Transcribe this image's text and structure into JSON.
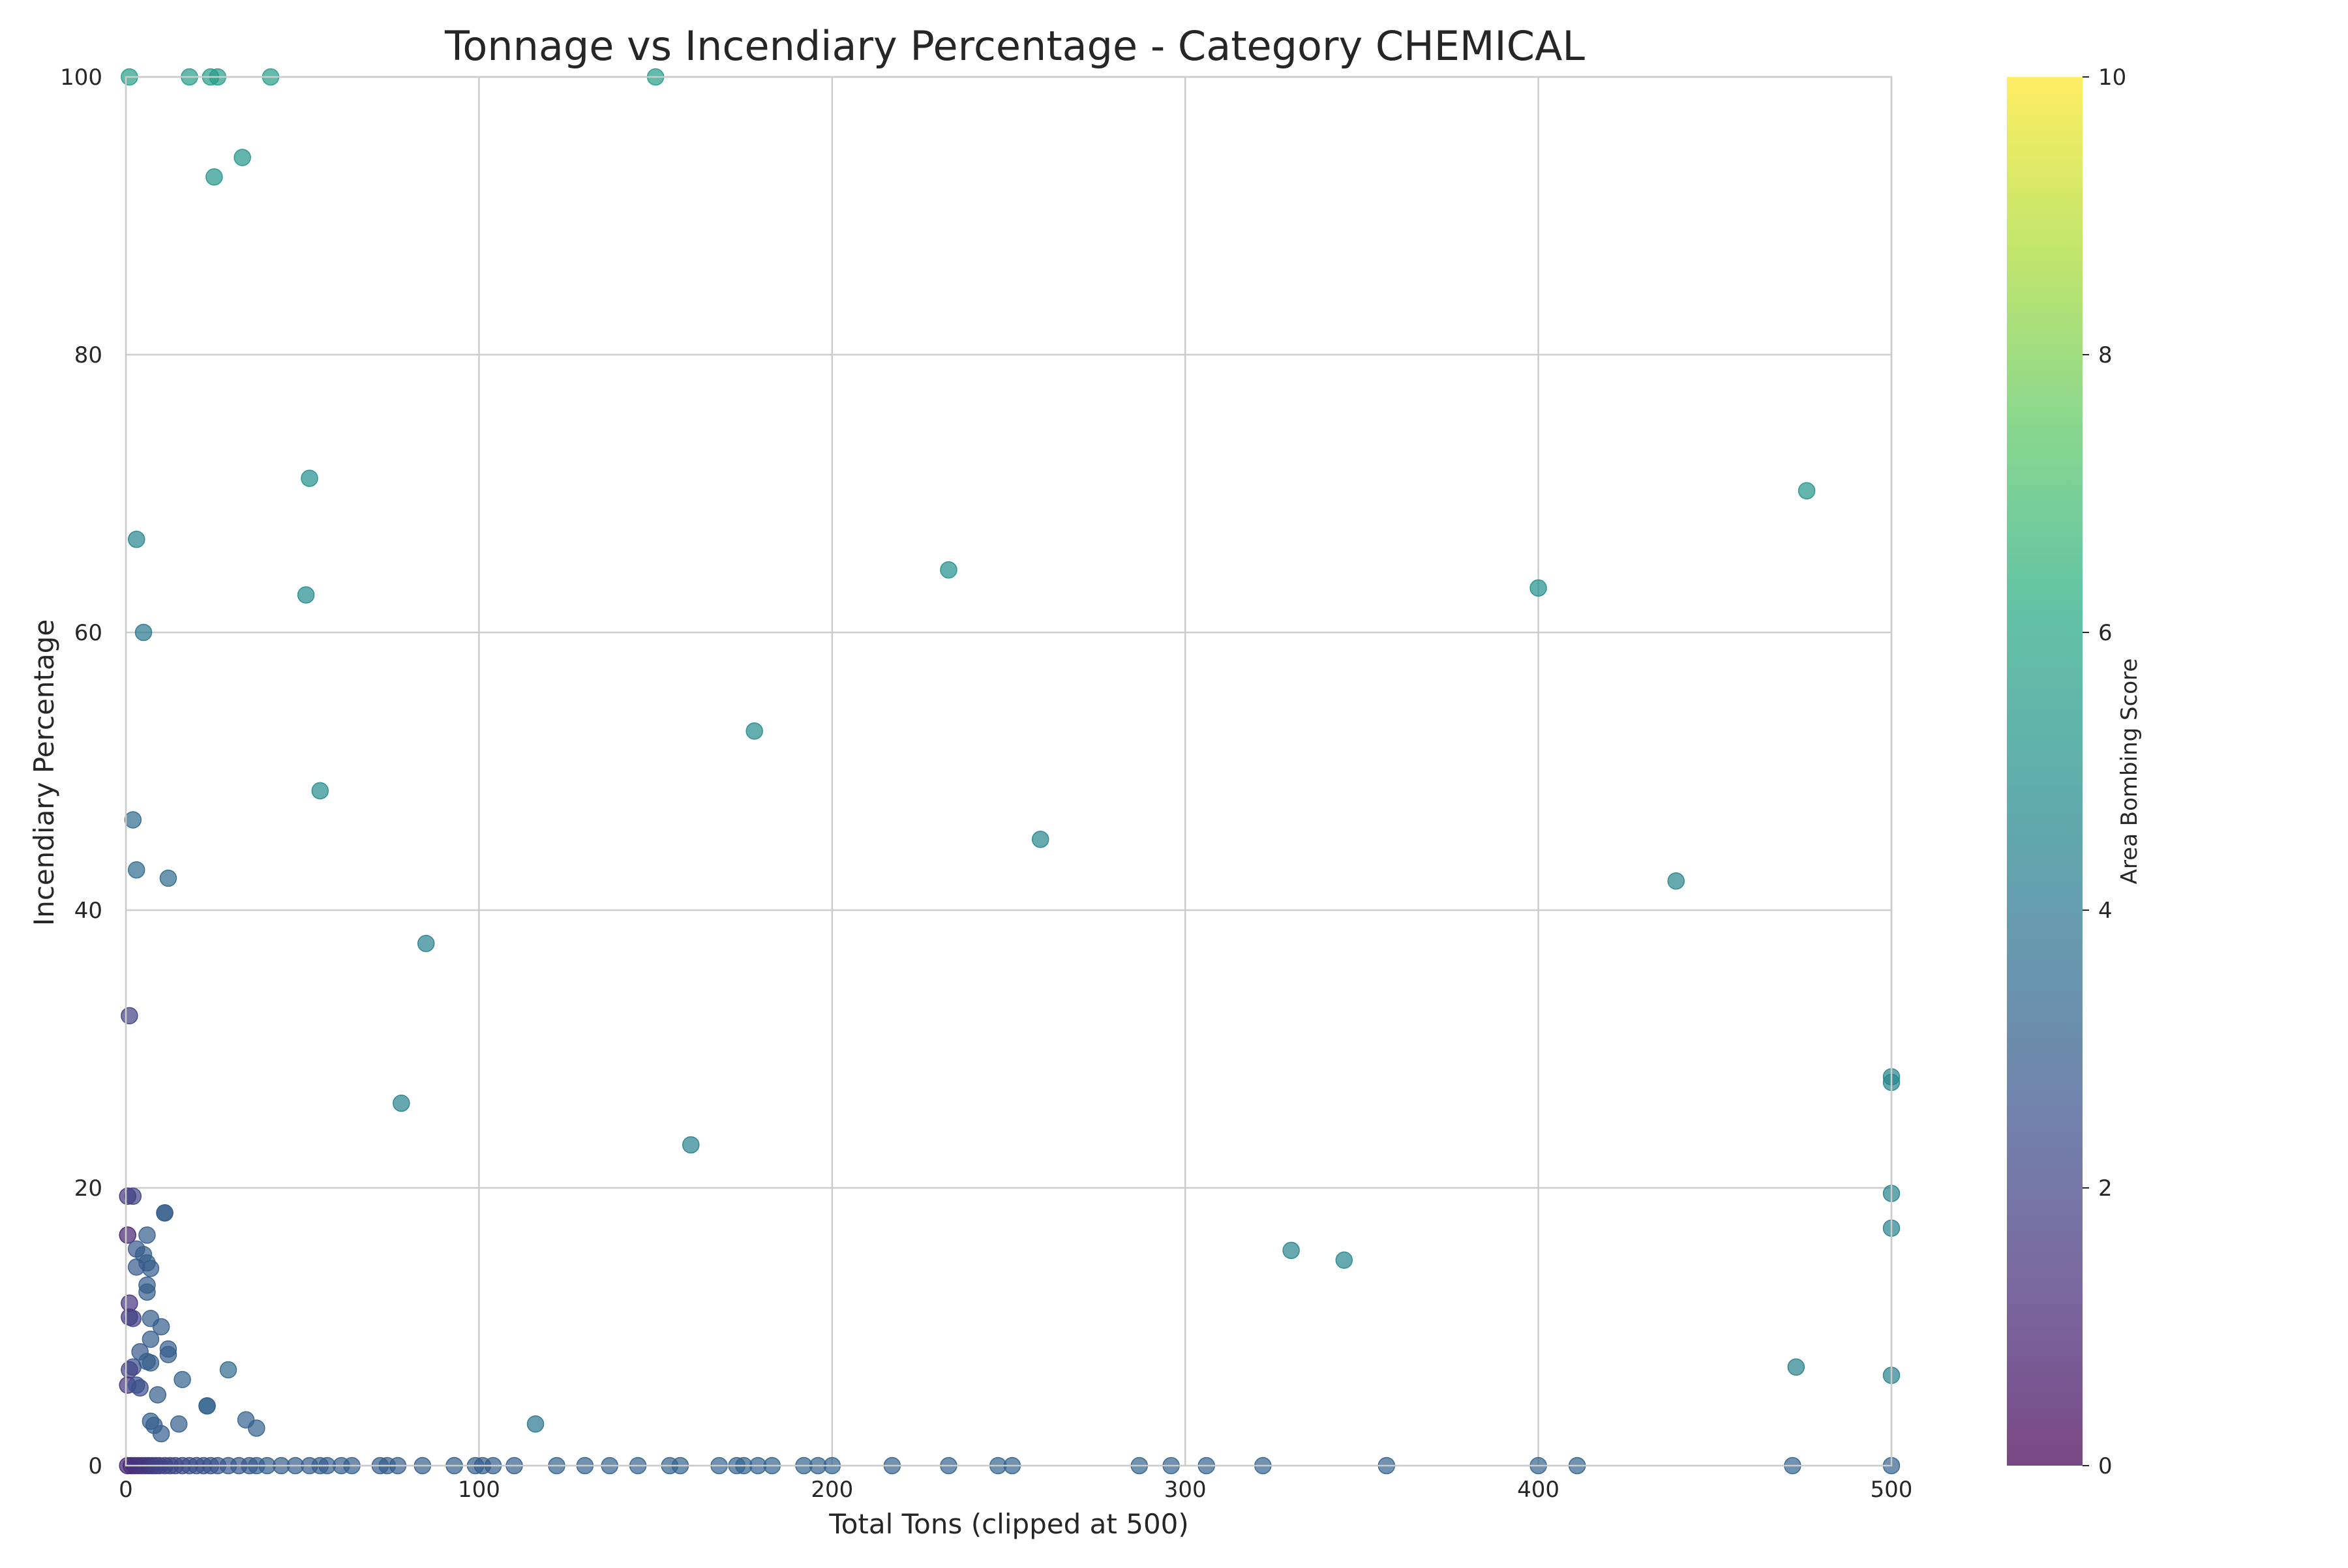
{
  "chart_data": {
    "type": "scatter",
    "title": "Tonnage vs Incendiary Percentage - Category CHEMICAL",
    "xlabel": "Total Tons (clipped at 500)",
    "ylabel": "Incendiary Percentage",
    "xlim": [
      0,
      500
    ],
    "ylim": [
      0,
      100
    ],
    "x_ticks": [
      0,
      100,
      200,
      300,
      400,
      500
    ],
    "y_ticks": [
      0,
      20,
      40,
      60,
      80,
      100
    ],
    "grid": true,
    "colorbar": {
      "label": "Area Bombing Score",
      "colormap": "viridis",
      "range": [
        0,
        10
      ],
      "ticks": [
        0,
        2,
        4,
        6,
        8,
        10
      ]
    },
    "marker_alpha": 0.7,
    "points": [
      {
        "x": 1,
        "y": 100,
        "c": 5.5
      },
      {
        "x": 18,
        "y": 100,
        "c": 5.5
      },
      {
        "x": 24,
        "y": 100,
        "c": 5.5
      },
      {
        "x": 26,
        "y": 100,
        "c": 5.5
      },
      {
        "x": 41,
        "y": 100,
        "c": 5.5
      },
      {
        "x": 150,
        "y": 100,
        "c": 5.5
      },
      {
        "x": 33,
        "y": 94.2,
        "c": 5.2
      },
      {
        "x": 25,
        "y": 92.8,
        "c": 5.2
      },
      {
        "x": 52,
        "y": 71.1,
        "c": 5.0
      },
      {
        "x": 476,
        "y": 70.2,
        "c": 5.2
      },
      {
        "x": 3,
        "y": 66.7,
        "c": 4.5
      },
      {
        "x": 233,
        "y": 64.5,
        "c": 5.0
      },
      {
        "x": 400,
        "y": 63.2,
        "c": 5.0
      },
      {
        "x": 51,
        "y": 62.7,
        "c": 4.8
      },
      {
        "x": 5,
        "y": 60.0,
        "c": 4.0
      },
      {
        "x": 178,
        "y": 52.9,
        "c": 4.8
      },
      {
        "x": 55,
        "y": 48.6,
        "c": 4.8
      },
      {
        "x": 2,
        "y": 46.5,
        "c": 3.5
      },
      {
        "x": 259,
        "y": 45.1,
        "c": 4.6
      },
      {
        "x": 3,
        "y": 42.9,
        "c": 3.5
      },
      {
        "x": 12,
        "y": 42.3,
        "c": 3.5
      },
      {
        "x": 439,
        "y": 42.1,
        "c": 4.6
      },
      {
        "x": 85,
        "y": 37.6,
        "c": 4.4
      },
      {
        "x": 1,
        "y": 32.4,
        "c": 2.0
      },
      {
        "x": 500,
        "y": 28.0,
        "c": 4.6
      },
      {
        "x": 500,
        "y": 27.6,
        "c": 4.6
      },
      {
        "x": 78,
        "y": 26.1,
        "c": 4.4
      },
      {
        "x": 160,
        "y": 23.1,
        "c": 4.4
      },
      {
        "x": 0.5,
        "y": 19.4,
        "c": 1.5
      },
      {
        "x": 2,
        "y": 19.4,
        "c": 2.0
      },
      {
        "x": 500,
        "y": 19.6,
        "c": 4.4
      },
      {
        "x": 11,
        "y": 18.2,
        "c": 3.0
      },
      {
        "x": 11,
        "y": 18.2,
        "c": 3.0
      },
      {
        "x": 500,
        "y": 17.1,
        "c": 4.4
      },
      {
        "x": 0.5,
        "y": 16.6,
        "c": 1.0
      },
      {
        "x": 6,
        "y": 16.6,
        "c": 3.0
      },
      {
        "x": 3,
        "y": 15.6,
        "c": 2.8
      },
      {
        "x": 5,
        "y": 15.2,
        "c": 3.0
      },
      {
        "x": 330,
        "y": 15.5,
        "c": 4.6
      },
      {
        "x": 345,
        "y": 14.8,
        "c": 4.6
      },
      {
        "x": 6,
        "y": 14.6,
        "c": 3.0
      },
      {
        "x": 7,
        "y": 14.2,
        "c": 3.0
      },
      {
        "x": 3,
        "y": 14.3,
        "c": 2.8
      },
      {
        "x": 6,
        "y": 13.0,
        "c": 3.0
      },
      {
        "x": 6,
        "y": 12.5,
        "c": 3.0
      },
      {
        "x": 1,
        "y": 11.7,
        "c": 1.5
      },
      {
        "x": 1,
        "y": 10.7,
        "c": 1.5
      },
      {
        "x": 2,
        "y": 10.6,
        "c": 2.0
      },
      {
        "x": 7,
        "y": 10.6,
        "c": 3.0
      },
      {
        "x": 10,
        "y": 10.0,
        "c": 3.0
      },
      {
        "x": 7,
        "y": 9.1,
        "c": 3.0
      },
      {
        "x": 12,
        "y": 8.4,
        "c": 3.0
      },
      {
        "x": 4,
        "y": 8.2,
        "c": 2.8
      },
      {
        "x": 12,
        "y": 8.0,
        "c": 3.0
      },
      {
        "x": 6,
        "y": 7.5,
        "c": 3.0
      },
      {
        "x": 7,
        "y": 7.4,
        "c": 3.0
      },
      {
        "x": 2,
        "y": 7.1,
        "c": 2.5
      },
      {
        "x": 1,
        "y": 6.9,
        "c": 2.0
      },
      {
        "x": 29,
        "y": 6.9,
        "c": 3.5
      },
      {
        "x": 473,
        "y": 7.1,
        "c": 4.4
      },
      {
        "x": 500,
        "y": 6.5,
        "c": 4.4
      },
      {
        "x": 16,
        "y": 6.2,
        "c": 3.2
      },
      {
        "x": 0.5,
        "y": 5.8,
        "c": 1.5
      },
      {
        "x": 3,
        "y": 5.8,
        "c": 2.5
      },
      {
        "x": 4,
        "y": 5.6,
        "c": 2.5
      },
      {
        "x": 9,
        "y": 5.1,
        "c": 3.0
      },
      {
        "x": 23,
        "y": 4.3,
        "c": 3.2
      },
      {
        "x": 23,
        "y": 4.3,
        "c": 3.2
      },
      {
        "x": 34,
        "y": 3.3,
        "c": 3.2
      },
      {
        "x": 7,
        "y": 3.2,
        "c": 3.0
      },
      {
        "x": 15,
        "y": 3.0,
        "c": 3.0
      },
      {
        "x": 8,
        "y": 2.9,
        "c": 3.0
      },
      {
        "x": 116,
        "y": 3.0,
        "c": 4.0
      },
      {
        "x": 37,
        "y": 2.7,
        "c": 3.2
      },
      {
        "x": 10,
        "y": 2.3,
        "c": 3.0
      },
      {
        "x": 0.5,
        "y": 0,
        "c": 1.0
      },
      {
        "x": 1.5,
        "y": 0,
        "c": 1.2
      },
      {
        "x": 2.5,
        "y": 0,
        "c": 1.3
      },
      {
        "x": 3.5,
        "y": 0,
        "c": 1.5
      },
      {
        "x": 4.5,
        "y": 0,
        "c": 1.5
      },
      {
        "x": 5.5,
        "y": 0,
        "c": 1.6
      },
      {
        "x": 6.5,
        "y": 0,
        "c": 1.6
      },
      {
        "x": 7.5,
        "y": 0,
        "c": 1.8
      },
      {
        "x": 8.5,
        "y": 0,
        "c": 1.8
      },
      {
        "x": 9.5,
        "y": 0,
        "c": 2.0
      },
      {
        "x": 11,
        "y": 0,
        "c": 2.0
      },
      {
        "x": 12.5,
        "y": 0,
        "c": 2.0
      },
      {
        "x": 14,
        "y": 0,
        "c": 2.2
      },
      {
        "x": 16,
        "y": 0,
        "c": 2.2
      },
      {
        "x": 18,
        "y": 0,
        "c": 2.4
      },
      {
        "x": 20,
        "y": 0,
        "c": 2.4
      },
      {
        "x": 22,
        "y": 0,
        "c": 2.5
      },
      {
        "x": 24,
        "y": 0,
        "c": 2.6
      },
      {
        "x": 26,
        "y": 0,
        "c": 2.6
      },
      {
        "x": 29,
        "y": 0,
        "c": 2.8
      },
      {
        "x": 32,
        "y": 0,
        "c": 2.8
      },
      {
        "x": 35,
        "y": 0,
        "c": 2.8
      },
      {
        "x": 37,
        "y": 0,
        "c": 3.0
      },
      {
        "x": 40,
        "y": 0,
        "c": 3.0
      },
      {
        "x": 44,
        "y": 0,
        "c": 3.0
      },
      {
        "x": 48,
        "y": 0,
        "c": 3.0
      },
      {
        "x": 52,
        "y": 0,
        "c": 3.0
      },
      {
        "x": 55,
        "y": 0,
        "c": 3.0
      },
      {
        "x": 57,
        "y": 0,
        "c": 3.0
      },
      {
        "x": 61,
        "y": 0,
        "c": 3.0
      },
      {
        "x": 64,
        "y": 0,
        "c": 3.0
      },
      {
        "x": 72,
        "y": 0,
        "c": 3.0
      },
      {
        "x": 74,
        "y": 0,
        "c": 3.0
      },
      {
        "x": 77,
        "y": 0,
        "c": 3.0
      },
      {
        "x": 84,
        "y": 0,
        "c": 3.0
      },
      {
        "x": 93,
        "y": 0,
        "c": 3.0
      },
      {
        "x": 99,
        "y": 0,
        "c": 3.0
      },
      {
        "x": 101,
        "y": 0,
        "c": 3.0
      },
      {
        "x": 104,
        "y": 0,
        "c": 3.0
      },
      {
        "x": 110,
        "y": 0,
        "c": 3.0
      },
      {
        "x": 122,
        "y": 0,
        "c": 3.2
      },
      {
        "x": 130,
        "y": 0,
        "c": 3.2
      },
      {
        "x": 137,
        "y": 0,
        "c": 3.2
      },
      {
        "x": 145,
        "y": 0,
        "c": 3.2
      },
      {
        "x": 154,
        "y": 0,
        "c": 3.2
      },
      {
        "x": 157,
        "y": 0,
        "c": 3.2
      },
      {
        "x": 168,
        "y": 0,
        "c": 3.2
      },
      {
        "x": 173,
        "y": 0,
        "c": 3.2
      },
      {
        "x": 175,
        "y": 0,
        "c": 3.2
      },
      {
        "x": 179,
        "y": 0,
        "c": 3.2
      },
      {
        "x": 183,
        "y": 0,
        "c": 3.2
      },
      {
        "x": 192,
        "y": 0,
        "c": 3.2
      },
      {
        "x": 196,
        "y": 0,
        "c": 3.2
      },
      {
        "x": 200,
        "y": 0,
        "c": 3.2
      },
      {
        "x": 217,
        "y": 0,
        "c": 3.2
      },
      {
        "x": 233,
        "y": 0,
        "c": 3.2
      },
      {
        "x": 247,
        "y": 0,
        "c": 3.2
      },
      {
        "x": 251,
        "y": 0,
        "c": 3.2
      },
      {
        "x": 287,
        "y": 0,
        "c": 3.2
      },
      {
        "x": 296,
        "y": 0,
        "c": 3.2
      },
      {
        "x": 306,
        "y": 0,
        "c": 3.2
      },
      {
        "x": 322,
        "y": 0,
        "c": 3.2
      },
      {
        "x": 357,
        "y": 0,
        "c": 3.2
      },
      {
        "x": 400,
        "y": 0,
        "c": 3.2
      },
      {
        "x": 411,
        "y": 0,
        "c": 3.2
      },
      {
        "x": 472,
        "y": 0,
        "c": 3.2
      },
      {
        "x": 500,
        "y": 0,
        "c": 3.2
      }
    ]
  }
}
